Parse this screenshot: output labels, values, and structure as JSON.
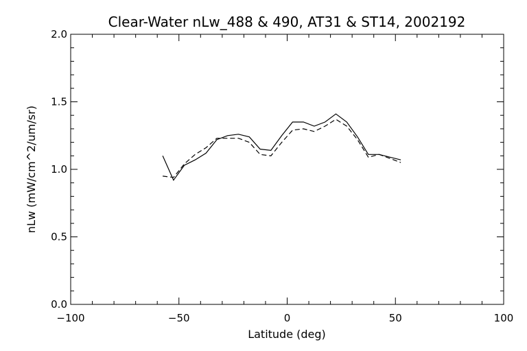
{
  "chart_data": {
    "type": "line",
    "title": "Clear-Water nLw_488 & 490, AT31 & ST14, 2002192",
    "xlabel": "Latitude (deg)",
    "ylabel": "nLw (mW/cm^2/um/sr)",
    "xlim": [
      -100,
      100
    ],
    "ylim": [
      0.0,
      2.0
    ],
    "x_ticks": [
      -100,
      -50,
      0,
      50,
      100
    ],
    "x_tick_labels": [
      "−100",
      "−50",
      "0",
      "50",
      "100"
    ],
    "y_ticks": [
      0.0,
      0.5,
      1.0,
      1.5,
      2.0
    ],
    "y_tick_labels": [
      "0.0",
      "0.5",
      "1.0",
      "1.5",
      "2.0"
    ],
    "grid": false,
    "legend": "none",
    "series": [
      {
        "style": "solid",
        "color": "#000000",
        "x": [
          -57.5,
          -52.5,
          -47.5,
          -42.5,
          -37.5,
          -32.5,
          -27.5,
          -22.5,
          -17.5,
          -12.5,
          -7.5,
          -2.5,
          2.5,
          7.5,
          12.5,
          17.5,
          22.5,
          27.5,
          32.5,
          37.5,
          42.5,
          47.5,
          52.5
        ],
        "y": [
          1.1,
          0.92,
          1.03,
          1.07,
          1.12,
          1.22,
          1.25,
          1.26,
          1.24,
          1.15,
          1.14,
          1.25,
          1.35,
          1.35,
          1.32,
          1.35,
          1.41,
          1.35,
          1.24,
          1.11,
          1.11,
          1.09,
          1.07
        ]
      },
      {
        "style": "dashed",
        "color": "#000000",
        "x": [
          -57.5,
          -52.5,
          -47.5,
          -42.5,
          -37.5,
          -32.5,
          -27.5,
          -22.5,
          -17.5,
          -12.5,
          -7.5,
          -2.5,
          2.5,
          7.5,
          12.5,
          17.5,
          22.5,
          27.5,
          32.5,
          37.5,
          42.5,
          47.5,
          52.5
        ],
        "y": [
          0.95,
          0.94,
          1.04,
          1.11,
          1.16,
          1.23,
          1.23,
          1.23,
          1.2,
          1.11,
          1.1,
          1.2,
          1.29,
          1.3,
          1.28,
          1.32,
          1.37,
          1.32,
          1.22,
          1.09,
          1.11,
          1.08,
          1.05
        ]
      }
    ]
  }
}
